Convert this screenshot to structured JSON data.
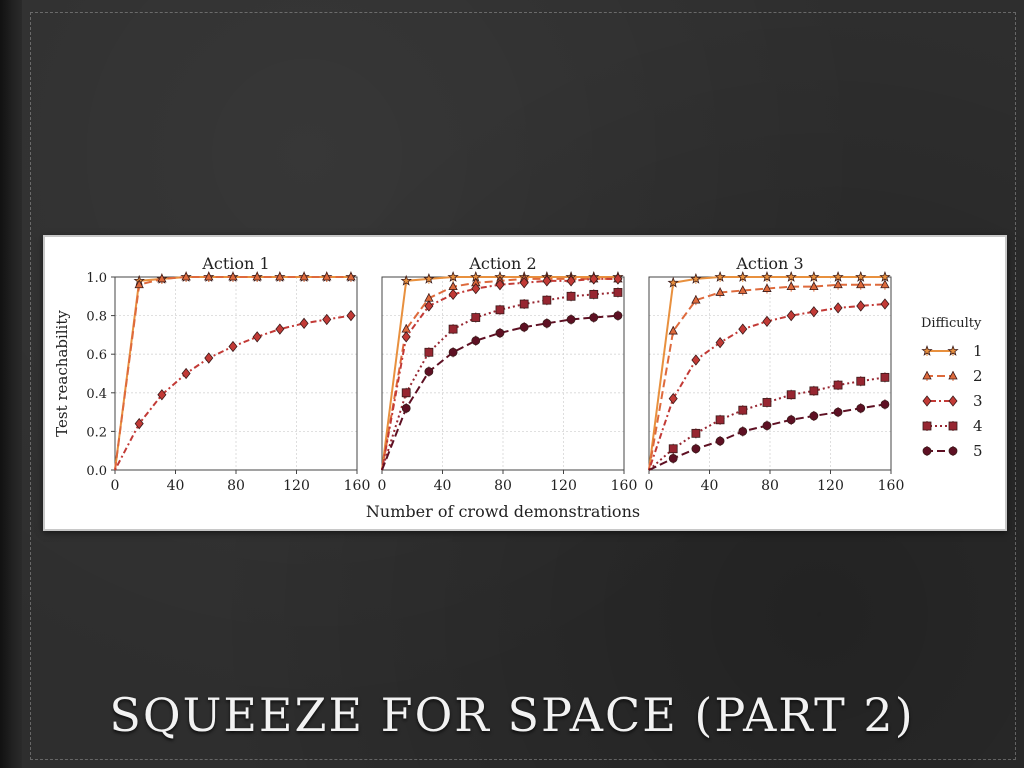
{
  "slide": {
    "title": "SQUEEZE FOR SPACE (PART 2)"
  },
  "chart_data": {
    "type": "line",
    "xlabel": "Number of crowd demonstrations",
    "ylabel": "Test reachability",
    "xlim": [
      0,
      160
    ],
    "ylim": [
      0,
      1.0
    ],
    "xticks": [
      0,
      40,
      80,
      120,
      160
    ],
    "yticks": [
      0.0,
      0.2,
      0.4,
      0.6,
      0.8,
      1.0
    ],
    "grid": true,
    "legend": {
      "title": "Difficulty",
      "placement": "right",
      "entries": [
        "1",
        "2",
        "3",
        "4",
        "5"
      ]
    },
    "x": [
      0,
      16,
      31,
      47,
      62,
      78,
      94,
      109,
      125,
      140,
      156
    ],
    "series_styles": [
      {
        "name": "1",
        "color": "#e8903e",
        "marker": "star",
        "dash": ""
      },
      {
        "name": "2",
        "color": "#de6a3c",
        "marker": "triangle",
        "dash": "8,4"
      },
      {
        "name": "3",
        "color": "#c23a36",
        "marker": "diamond",
        "dash": "2,3,6,3"
      },
      {
        "name": "4",
        "color": "#972631",
        "marker": "square",
        "dash": "2,3"
      },
      {
        "name": "5",
        "color": "#5e1023",
        "marker": "circle",
        "dash": "8,4"
      }
    ],
    "panels": [
      {
        "title": "Action 1",
        "series": [
          {
            "name": "1",
            "values": [
              0.0,
              0.98,
              0.99,
              1.0,
              1.0,
              1.0,
              1.0,
              1.0,
              1.0,
              1.0,
              1.0
            ]
          },
          {
            "name": "2",
            "values": [
              0.0,
              0.96,
              0.99,
              1.0,
              1.0,
              1.0,
              1.0,
              1.0,
              1.0,
              1.0,
              1.0
            ]
          },
          {
            "name": "3",
            "values": [
              0.0,
              0.24,
              0.39,
              0.5,
              0.58,
              0.64,
              0.69,
              0.73,
              0.76,
              0.78,
              0.8
            ]
          }
        ]
      },
      {
        "title": "Action 2",
        "series": [
          {
            "name": "1",
            "values": [
              0.0,
              0.98,
              0.99,
              1.0,
              1.0,
              1.0,
              1.0,
              1.0,
              1.0,
              1.0,
              1.0
            ]
          },
          {
            "name": "2",
            "values": [
              0.0,
              0.73,
              0.89,
              0.95,
              0.97,
              0.98,
              0.99,
              0.99,
              0.99,
              0.99,
              0.99
            ]
          },
          {
            "name": "3",
            "values": [
              0.0,
              0.69,
              0.85,
              0.91,
              0.94,
              0.96,
              0.97,
              0.98,
              0.98,
              0.99,
              0.99
            ]
          },
          {
            "name": "4",
            "values": [
              0.0,
              0.4,
              0.61,
              0.73,
              0.79,
              0.83,
              0.86,
              0.88,
              0.9,
              0.91,
              0.92
            ]
          },
          {
            "name": "5",
            "values": [
              0.0,
              0.32,
              0.51,
              0.61,
              0.67,
              0.71,
              0.74,
              0.76,
              0.78,
              0.79,
              0.8
            ]
          }
        ]
      },
      {
        "title": "Action 3",
        "series": [
          {
            "name": "1",
            "values": [
              0.0,
              0.97,
              0.99,
              1.0,
              1.0,
              1.0,
              1.0,
              1.0,
              1.0,
              1.0,
              1.0
            ]
          },
          {
            "name": "2",
            "values": [
              0.0,
              0.72,
              0.88,
              0.92,
              0.93,
              0.94,
              0.95,
              0.95,
              0.96,
              0.96,
              0.96
            ]
          },
          {
            "name": "3",
            "values": [
              0.0,
              0.37,
              0.57,
              0.66,
              0.73,
              0.77,
              0.8,
              0.82,
              0.84,
              0.85,
              0.86
            ]
          },
          {
            "name": "4",
            "values": [
              0.0,
              0.11,
              0.19,
              0.26,
              0.31,
              0.35,
              0.39,
              0.41,
              0.44,
              0.46,
              0.48
            ]
          },
          {
            "name": "5",
            "values": [
              0.0,
              0.06,
              0.11,
              0.15,
              0.2,
              0.23,
              0.26,
              0.28,
              0.3,
              0.32,
              0.34
            ]
          }
        ]
      }
    ]
  }
}
